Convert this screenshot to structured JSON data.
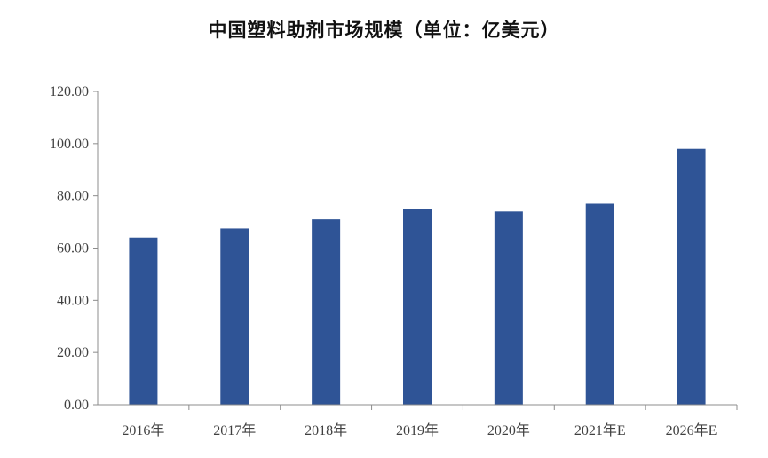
{
  "chart_data": {
    "type": "bar",
    "title": "中国塑料助剂市场规模（单位：亿美元）",
    "categories": [
      "2016年",
      "2017年",
      "2018年",
      "2019年",
      "2020年",
      "2021年E",
      "2026年E"
    ],
    "values": [
      64,
      67.5,
      71,
      75,
      74,
      77,
      98
    ],
    "ylim": [
      0,
      120
    ],
    "yticks": [
      "0.00",
      "20.00",
      "40.00",
      "60.00",
      "80.00",
      "100.00",
      "120.00"
    ],
    "xlabel": "",
    "ylabel": "",
    "grid": false,
    "legend": "none",
    "bar_color": "#2f5496"
  }
}
